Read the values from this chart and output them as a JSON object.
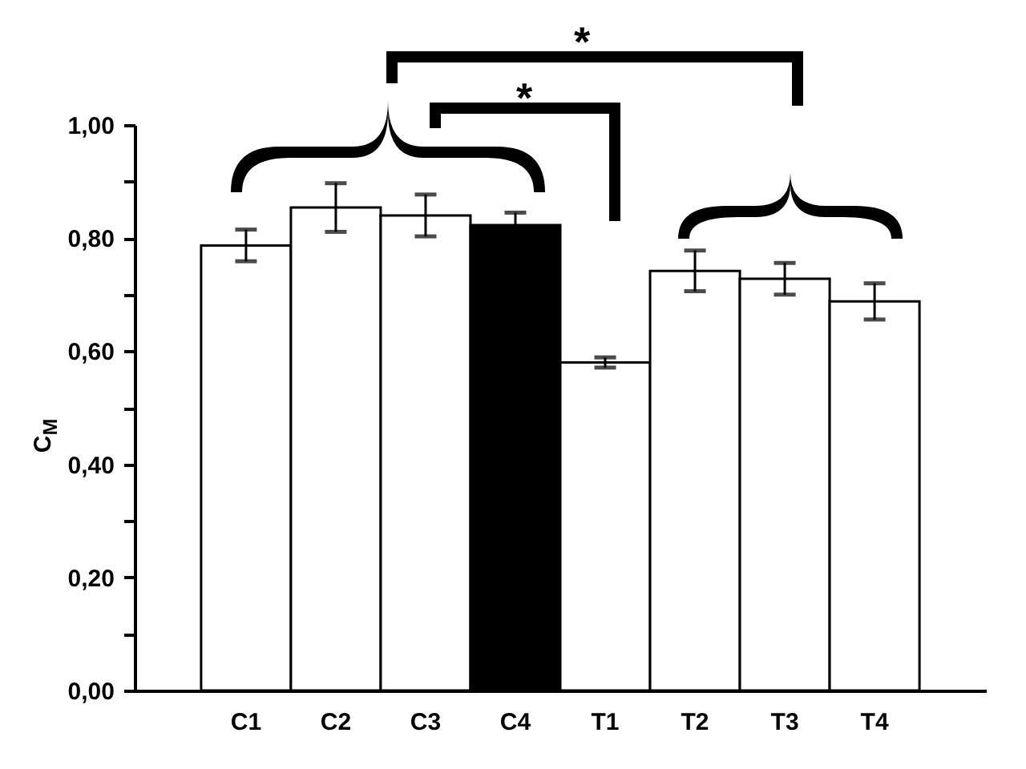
{
  "chart_data": {
    "type": "bar",
    "ylabel": "C$_{M}$",
    "categories": [
      "C1",
      "C2",
      "C3",
      "C4",
      "T1",
      "T2",
      "T3",
      "T4"
    ],
    "values": [
      0.787,
      0.854,
      0.84,
      0.823,
      0.58,
      0.742,
      0.728,
      0.688
    ],
    "errors": [
      0.028,
      0.043,
      0.037,
      0.022,
      0.009,
      0.036,
      0.028,
      0.032
    ],
    "colors": [
      "#ffffff",
      "#ffffff",
      "#ffffff",
      "#000000",
      "#ffffff",
      "#ffffff",
      "#ffffff",
      "#ffffff"
    ],
    "ylim": [
      0,
      1
    ],
    "yticks": [
      {
        "value": 0,
        "label": "0,00"
      },
      {
        "value": 0.1,
        "label": null
      },
      {
        "value": 0.2,
        "label": "0,20"
      },
      {
        "value": 0.3,
        "label": null
      },
      {
        "value": 0.4,
        "label": "0,40"
      },
      {
        "value": 0.5,
        "label": null
      },
      {
        "value": 0.6,
        "label": "0,60"
      },
      {
        "value": 0.7,
        "label": null
      },
      {
        "value": 0.8,
        "label": "0,80"
      },
      {
        "value": 0.9,
        "label": null
      },
      {
        "value": 1,
        "label": "1,00"
      }
    ],
    "grid": false,
    "annotations": [
      "*",
      "*"
    ]
  }
}
